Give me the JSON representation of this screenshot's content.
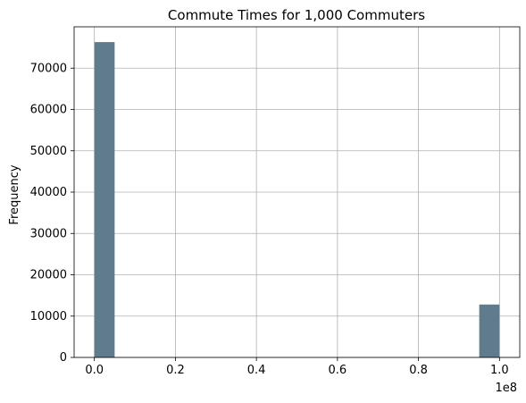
{
  "chart_data": {
    "type": "bar",
    "title": "Commute Times for 1,000 Commuters",
    "xlabel": "",
    "ylabel": "Frequency",
    "x_offset_label": "1e8",
    "x_scale": 100000000,
    "xlim": [
      -0.05,
      1.05
    ],
    "ylim": [
      0,
      80000
    ],
    "x_ticks": [
      0.0,
      0.2,
      0.4,
      0.6,
      0.8,
      1.0
    ],
    "x_tick_labels": [
      "0.0",
      "0.2",
      "0.4",
      "0.6",
      "0.8",
      "1.0"
    ],
    "y_ticks": [
      0,
      10000,
      20000,
      30000,
      40000,
      50000,
      60000,
      70000
    ],
    "y_tick_labels": [
      "0",
      "10000",
      "20000",
      "30000",
      "40000",
      "50000",
      "60000",
      "70000"
    ],
    "grid": true,
    "bar_color": "#607b8b",
    "bins": [
      {
        "x_start": 0.0,
        "x_end": 0.05,
        "value": 76300
      },
      {
        "x_start": 0.95,
        "x_end": 1.0,
        "value": 12800
      }
    ]
  }
}
